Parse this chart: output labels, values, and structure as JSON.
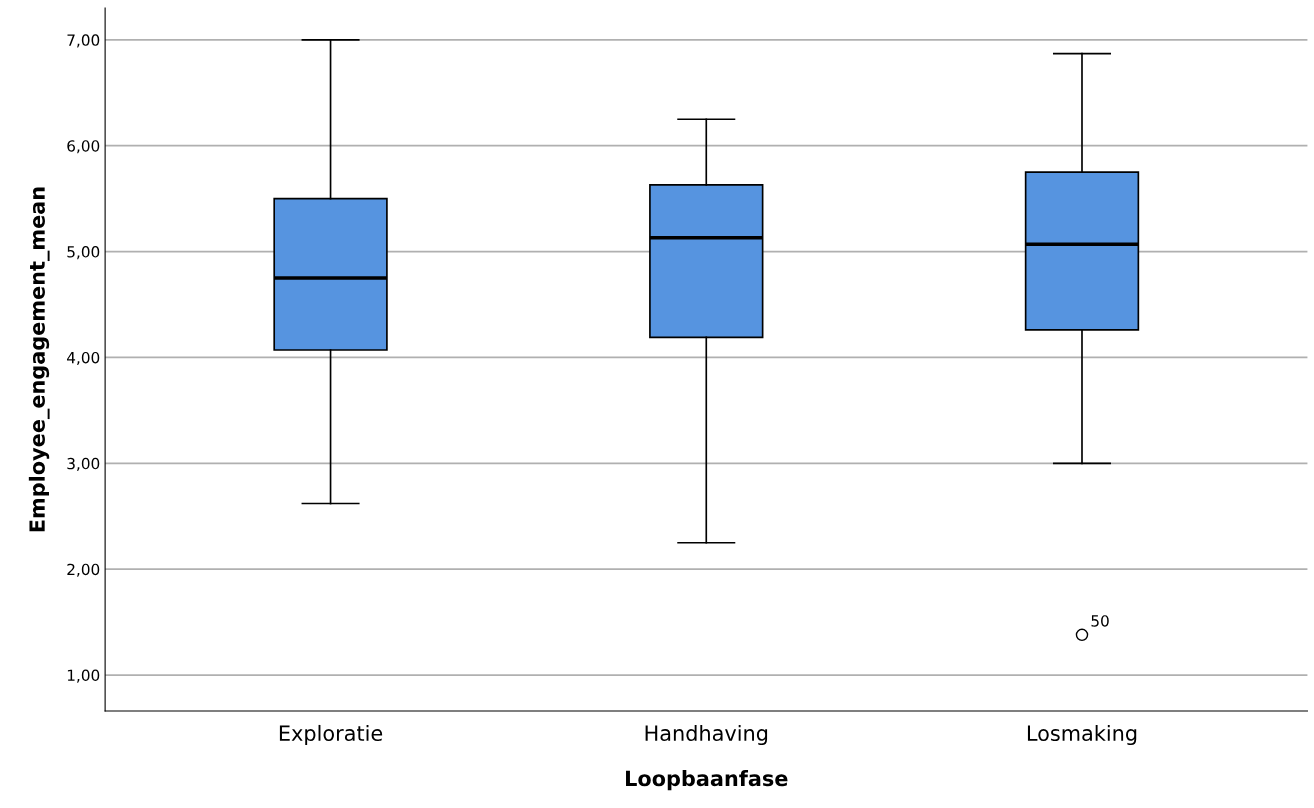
{
  "chart_data": {
    "type": "box",
    "xlabel": "Loopbaanfase",
    "ylabel": "Employee_engagement_mean",
    "categories": [
      "Exploratie",
      "Handhaving",
      "Losmaking"
    ],
    "boxes": [
      {
        "low": 2.62,
        "q1": 4.07,
        "median": 4.75,
        "q3": 5.5,
        "high": 7.0
      },
      {
        "low": 2.25,
        "q1": 4.19,
        "median": 5.13,
        "q3": 5.63,
        "high": 6.25
      },
      {
        "low": 3.0,
        "q1": 4.26,
        "median": 5.07,
        "q3": 5.75,
        "high": 6.87,
        "outliers": [
          1.38
        ]
      }
    ],
    "color": "#5694e0",
    "ylim": [
      0.66,
      7.3
    ],
    "yticks": [
      {
        "value": 1,
        "label": "1,00"
      },
      {
        "value": 2,
        "label": "2,00"
      },
      {
        "value": 3,
        "label": "3,00"
      },
      {
        "value": 4,
        "label": "4,00"
      },
      {
        "value": 5,
        "label": "5,00"
      },
      {
        "value": 6,
        "label": "6,00"
      },
      {
        "value": 7,
        "label": "7,00"
      }
    ],
    "grid": "y",
    "annotations": [
      "50"
    ]
  }
}
